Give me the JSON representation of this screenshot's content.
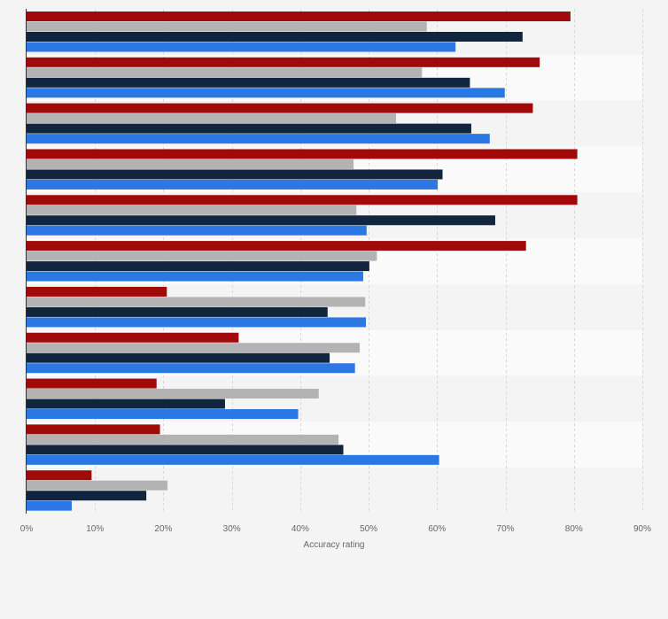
{
  "chart_data": {
    "type": "bar",
    "orientation": "horizontal",
    "xlabel": "Accuracy rating",
    "ylabel": "",
    "xlim": [
      0,
      90
    ],
    "x_ticks": [
      "0%",
      "10%",
      "20%",
      "30%",
      "40%",
      "50%",
      "60%",
      "70%",
      "80%",
      "90%"
    ],
    "categories": [
      "",
      "",
      "",
      "",
      "",
      "",
      "",
      "",
      "",
      "",
      ""
    ],
    "grid": "vertical dashed",
    "legend": "none",
    "series": [
      {
        "color": "#a10a0b",
        "values": [
          79.5,
          75.0,
          74.0,
          80.5,
          80.5,
          73.0,
          20.5,
          31.0,
          19.0,
          19.5,
          9.5
        ]
      },
      {
        "color": "#b3b3b3",
        "values": [
          58.5,
          57.8,
          54.0,
          47.8,
          48.2,
          51.2,
          49.5,
          48.7,
          42.7,
          45.6,
          20.6
        ]
      },
      {
        "color": "#12253f",
        "values": [
          72.5,
          64.8,
          65.0,
          60.8,
          68.5,
          50.1,
          44.0,
          44.3,
          29.0,
          46.3,
          17.5
        ]
      },
      {
        "color": "#2b78e4",
        "values": [
          62.7,
          69.9,
          67.7,
          60.1,
          49.7,
          49.2,
          49.6,
          48.0,
          39.7,
          60.3,
          6.6
        ]
      }
    ]
  }
}
